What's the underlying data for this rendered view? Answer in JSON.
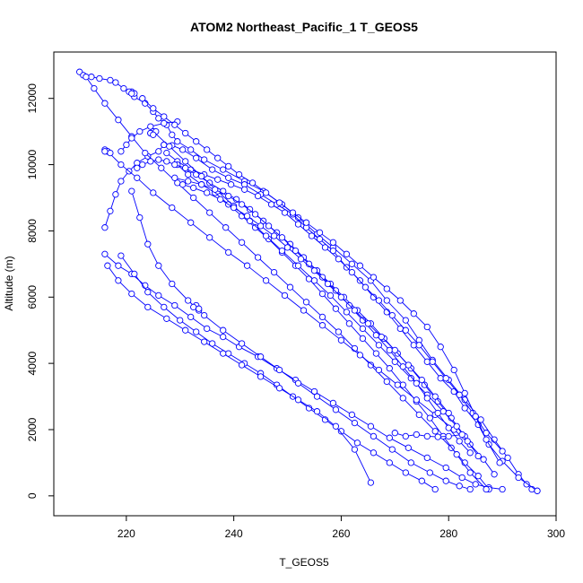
{
  "chart_data": {
    "type": "scatter",
    "title": "ATOM2 Northeast_Pacific_1 T_GEOS5",
    "xlabel": "T_GEOS5",
    "ylabel": "Altitude (m)",
    "xlim": [
      206.5,
      300
    ],
    "ylim": [
      -600,
      13400
    ],
    "x_ticks": [
      "220",
      "240",
      "260",
      "280",
      "300"
    ],
    "y_ticks": [
      "0",
      "2000",
      "4000",
      "6000",
      "8000",
      "10000",
      "12000"
    ],
    "marker": "open-circle",
    "line_style": "connected",
    "grid": false,
    "color": "#0000ff",
    "series": [
      {
        "x": [
          211.3,
          212.0,
          213.5,
          215.0,
          217.0,
          218.0,
          219.5,
          221.5,
          223.5,
          225.0,
          226.0,
          227.5,
          228.5,
          229.5,
          232.0,
          234.5,
          238.0,
          242.0,
          245.5,
          249.0,
          252.0,
          255.5,
          258.5,
          262.0,
          265.5,
          268.5,
          272.0,
          274.5,
          277.0,
          280.0,
          283.0,
          286.0,
          288.5,
          291.0,
          293.0,
          294.5,
          295.5,
          296.5
        ],
        "y": [
          12800,
          12700,
          12650,
          12600,
          12550,
          12480,
          12300,
          12050,
          11850,
          11600,
          11400,
          11200,
          10900,
          10700,
          10450,
          10150,
          9850,
          9500,
          9200,
          8800,
          8400,
          7900,
          7500,
          7000,
          6500,
          5900,
          5300,
          4700,
          4100,
          3500,
          2900,
          2300,
          1700,
          1150,
          650,
          350,
          200,
          150
        ]
      },
      {
        "x": [
          296.5,
          293.0,
          290.0,
          287.5,
          285.5,
          283.0,
          281.0,
          278.5,
          276.0,
          273.5,
          271.0,
          268.5,
          266.0,
          263.5,
          261.0,
          258.5,
          256.0,
          253.5,
          251.0,
          248.0,
          245.0,
          242.0,
          239.0,
          236.0,
          233.0,
          230.5,
          228.5,
          227.0
        ],
        "y": [
          150,
          550,
          1050,
          1550,
          2150,
          2650,
          3150,
          3550,
          4050,
          4550,
          5050,
          5550,
          6000,
          6500,
          6900,
          7400,
          7750,
          8100,
          8500,
          8800,
          9100,
          9400,
          9600,
          9850,
          10200,
          10450,
          10580,
          10600
        ]
      },
      {
        "x": [
          227.0,
          226.0,
          224.0,
          222.0,
          220.5,
          219.0,
          218.0,
          217.0,
          216.0
        ],
        "y": [
          10600,
          10400,
          10250,
          10050,
          9800,
          9500,
          9100,
          8600,
          8100
        ]
      },
      {
        "x": [
          216.0,
          218.5,
          221.0,
          223.5,
          226.0,
          229.0,
          232.0,
          235.0,
          238.0,
          241.0,
          244.5,
          248.0,
          251.5,
          255.0,
          258.5,
          262.0,
          265.5,
          269.0,
          272.5,
          276.0,
          279.5,
          282.5,
          285.0,
          287.5,
          290.0
        ],
        "y": [
          7300,
          6950,
          6700,
          6350,
          6050,
          5750,
          5400,
          5050,
          4800,
          4500,
          4200,
          3850,
          3500,
          3150,
          2800,
          2450,
          2100,
          1750,
          1450,
          1150,
          850,
          550,
          350,
          250,
          200
        ]
      },
      {
        "x": [
          290.0,
          287.0,
          284.5,
          282.0,
          279.5,
          277.0,
          274.5,
          272.0,
          269.5,
          267.0,
          264.5,
          262.0,
          259.5,
          257.0,
          254.5,
          252.0,
          249.5,
          247.0,
          244.5,
          242.0,
          239.5,
          237.0,
          234.5,
          232.0,
          229.5,
          227.5
        ],
        "y": [
          1350,
          1900,
          2500,
          3050,
          3550,
          4050,
          4550,
          5000,
          5450,
          5900,
          6300,
          6750,
          7150,
          7500,
          7850,
          8200,
          8550,
          8800,
          9050,
          9250,
          9400,
          9550,
          9700,
          9850,
          10100,
          10350
        ]
      },
      {
        "x": [
          212.5,
          214.0,
          216.0,
          218.5,
          221.0,
          223.5,
          226.5,
          229.5,
          232.5,
          235.5,
          238.5,
          241.5,
          244.5,
          247.5,
          250.5,
          253.5,
          256.5,
          259.5,
          262.5,
          265.5,
          268.5,
          271.5,
          274.5,
          277.5,
          280.5,
          283.0,
          285.5,
          287.5
        ],
        "y": [
          12650,
          12300,
          11850,
          11350,
          10850,
          10350,
          9900,
          9450,
          9000,
          8550,
          8100,
          7650,
          7200,
          6750,
          6300,
          5850,
          5400,
          4950,
          4450,
          3950,
          3450,
          2950,
          2450,
          1950,
          1450,
          1000,
          600,
          200
        ]
      },
      {
        "x": [
          287.0,
          284.0,
          281.5,
          279.0,
          276.5,
          274.0,
          271.5,
          269.0,
          266.5,
          264.0,
          261.5,
          259.0,
          256.5,
          254.0,
          251.5,
          249.0,
          246.5,
          244.0,
          241.5,
          239.0,
          236.5,
          234.0,
          231.5,
          229.5
        ],
        "y": [
          200,
          700,
          1250,
          1800,
          2350,
          2850,
          3350,
          3850,
          4300,
          4750,
          5200,
          5650,
          6100,
          6550,
          6950,
          7350,
          7750,
          8100,
          8450,
          8800,
          9150,
          9400,
          9700,
          10000
        ]
      },
      {
        "x": [
          229.5,
          227.0,
          224.5,
          222.5,
          221.0,
          220.0,
          219.0
        ],
        "y": [
          11300,
          11250,
          11150,
          11000,
          10800,
          10600,
          10400
        ]
      },
      {
        "x": [
          216.5,
          219.0,
          222.0,
          225.0,
          228.5,
          232.0,
          235.5,
          239.0,
          242.5,
          246.0,
          249.5,
          253.0,
          256.5,
          260.0,
          263.5,
          267.0,
          270.5,
          274.0,
          277.5,
          281.0,
          284.0,
          286.5,
          288.5
        ],
        "y": [
          10400,
          10000,
          9600,
          9150,
          8700,
          8250,
          7800,
          7350,
          6950,
          6500,
          6050,
          5600,
          5150,
          4700,
          4250,
          3800,
          3350,
          2900,
          2450,
          2000,
          1550,
          1100,
          650
        ]
      },
      {
        "x": [
          283.0,
          280.5,
          278.0,
          275.5,
          273.0,
          270.5,
          268.0,
          265.5,
          263.0,
          260.5,
          258.0,
          255.5,
          253.0,
          250.5,
          248.0,
          245.5,
          243.0,
          240.5,
          238.0,
          235.5,
          233.0,
          231.0,
          229.0,
          227.5,
          226.0,
          224.5,
          223.0,
          222.0
        ],
        "y": [
          1800,
          2350,
          2850,
          3350,
          3850,
          4300,
          4750,
          5200,
          5600,
          6000,
          6400,
          6800,
          7200,
          7600,
          7950,
          8300,
          8650,
          8950,
          9200,
          9450,
          9700,
          9900,
          10000,
          10100,
          10150,
          10100,
          10000,
          9900
        ]
      },
      {
        "x": [
          225.0,
          228.0,
          231.0,
          234.0,
          237.0,
          240.0,
          243.0,
          246.0,
          249.0,
          252.0,
          255.0,
          258.0,
          261.0,
          264.0,
          267.0,
          270.0,
          273.0,
          276.0,
          279.0,
          281.5,
          283.5,
          285.5
        ],
        "y": [
          11000,
          10550,
          10100,
          9650,
          9200,
          8750,
          8300,
          7850,
          7400,
          6950,
          6500,
          6050,
          5550,
          5050,
          4550,
          4050,
          3550,
          3050,
          2550,
          2100,
          1650,
          1200
        ]
      },
      {
        "x": [
          221.0,
          222.5,
          224.0,
          226.0,
          228.5,
          231.5,
          234.5,
          238.0,
          241.5,
          245.0,
          248.5,
          252.0,
          255.5,
          259.0,
          262.5,
          266.0,
          269.5,
          273.0,
          276.5,
          279.5,
          282.0,
          284.0
        ],
        "y": [
          9200,
          8400,
          7600,
          6950,
          6400,
          5900,
          5450,
          5000,
          4600,
          4200,
          3800,
          3400,
          3000,
          2600,
          2200,
          1800,
          1400,
          1000,
          700,
          450,
          300,
          200
        ]
      },
      {
        "x": [
          284.0,
          282.0,
          280.0,
          278.0,
          276.0,
          274.0,
          271.5,
          269.0,
          266.5,
          264.0,
          261.5,
          259.0,
          256.5,
          254.0,
          251.5,
          249.0,
          246.5,
          244.0,
          241.5,
          239.0,
          236.5,
          234.0,
          231.5,
          229.0
        ],
        "y": [
          1300,
          1650,
          2050,
          2500,
          2950,
          3400,
          3900,
          4400,
          4850,
          5300,
          5750,
          6200,
          6600,
          7000,
          7400,
          7800,
          8150,
          8500,
          8800,
          9050,
          9250,
          9400,
          9500,
          9600
        ]
      },
      {
        "x": [
          219.0,
          221.5,
          224.0,
          227.0,
          230.0,
          233.0,
          236.0,
          239.0,
          242.0,
          245.0,
          248.0,
          251.0,
          254.0,
          257.0,
          260.0,
          263.0,
          266.0,
          269.0,
          272.0,
          275.0,
          277.5
        ],
        "y": [
          7250,
          6700,
          6150,
          5700,
          5300,
          4950,
          4600,
          4300,
          4000,
          3700,
          3350,
          3000,
          2650,
          2300,
          1950,
          1600,
          1300,
          1000,
          700,
          450,
          200
        ]
      },
      {
        "x": [
          280.0,
          277.5,
          275.0,
          272.5,
          270.0,
          267.5,
          265.0,
          262.5,
          260.0,
          257.5,
          255.0,
          252.5,
          250.0,
          247.5,
          245.0,
          242.5,
          240.0,
          237.5,
          235.0,
          232.5,
          230.5
        ],
        "y": [
          2500,
          3000,
          3500,
          3950,
          4400,
          4800,
          5200,
          5600,
          6000,
          6400,
          6800,
          7150,
          7500,
          7850,
          8150,
          8450,
          8700,
          8950,
          9150,
          9300,
          9400
        ]
      },
      {
        "x": [
          216.5,
          218.5,
          221.0,
          224.0,
          227.5,
          231.0,
          234.5,
          238.0,
          241.5,
          245.0,
          248.5,
          252.0,
          255.5,
          259.0,
          262.5,
          265.5
        ],
        "y": [
          6950,
          6500,
          6100,
          5700,
          5350,
          5000,
          4650,
          4300,
          3950,
          3600,
          3250,
          2900,
          2550,
          2100,
          1400,
          400
        ]
      },
      {
        "x": [
          223.0,
          225.0,
          227.0,
          229.0,
          231.0,
          233.0,
          235.0,
          237.0,
          239.0,
          241.0,
          243.5,
          246.0,
          248.5,
          251.0,
          253.5,
          256.0,
          258.5,
          261.0,
          263.5,
          266.0,
          268.5,
          271.0,
          273.5,
          276.0,
          278.5,
          281.0,
          283.0,
          285.0,
          287.0,
          289.5
        ],
        "y": [
          12000,
          11700,
          11450,
          11200,
          10950,
          10700,
          10450,
          10200,
          9950,
          9700,
          9450,
          9150,
          8850,
          8550,
          8250,
          7950,
          7650,
          7300,
          6950,
          6600,
          6250,
          5900,
          5500,
          5100,
          4500,
          3800,
          3100,
          2400,
          1700,
          1000
        ]
      },
      {
        "x": [
          270.0,
          272.0,
          274.0,
          276.0,
          278.0,
          280.0,
          282.5
        ],
        "y": [
          1900,
          1800,
          1850,
          1800,
          1780,
          1800,
          1850
        ]
      },
      {
        "x": [
          233.0,
          233.5,
          232.5,
          233.5
        ],
        "y": [
          5750,
          5600,
          5700,
          5650
        ]
      },
      {
        "x": [
          216.0,
          216.5,
          217.0,
          216.0
        ],
        "y": [
          10450,
          10400,
          10350,
          10400
        ]
      },
      {
        "x": [
          225.0,
          224.5,
          225.5,
          224.5,
          225.0
        ],
        "y": [
          11000,
          10950,
          11000,
          10950,
          10900
        ]
      },
      {
        "x": [
          221.0,
          221.5,
          220.5,
          221.0
        ],
        "y": [
          12200,
          12150,
          12200,
          12150
        ]
      }
    ]
  }
}
